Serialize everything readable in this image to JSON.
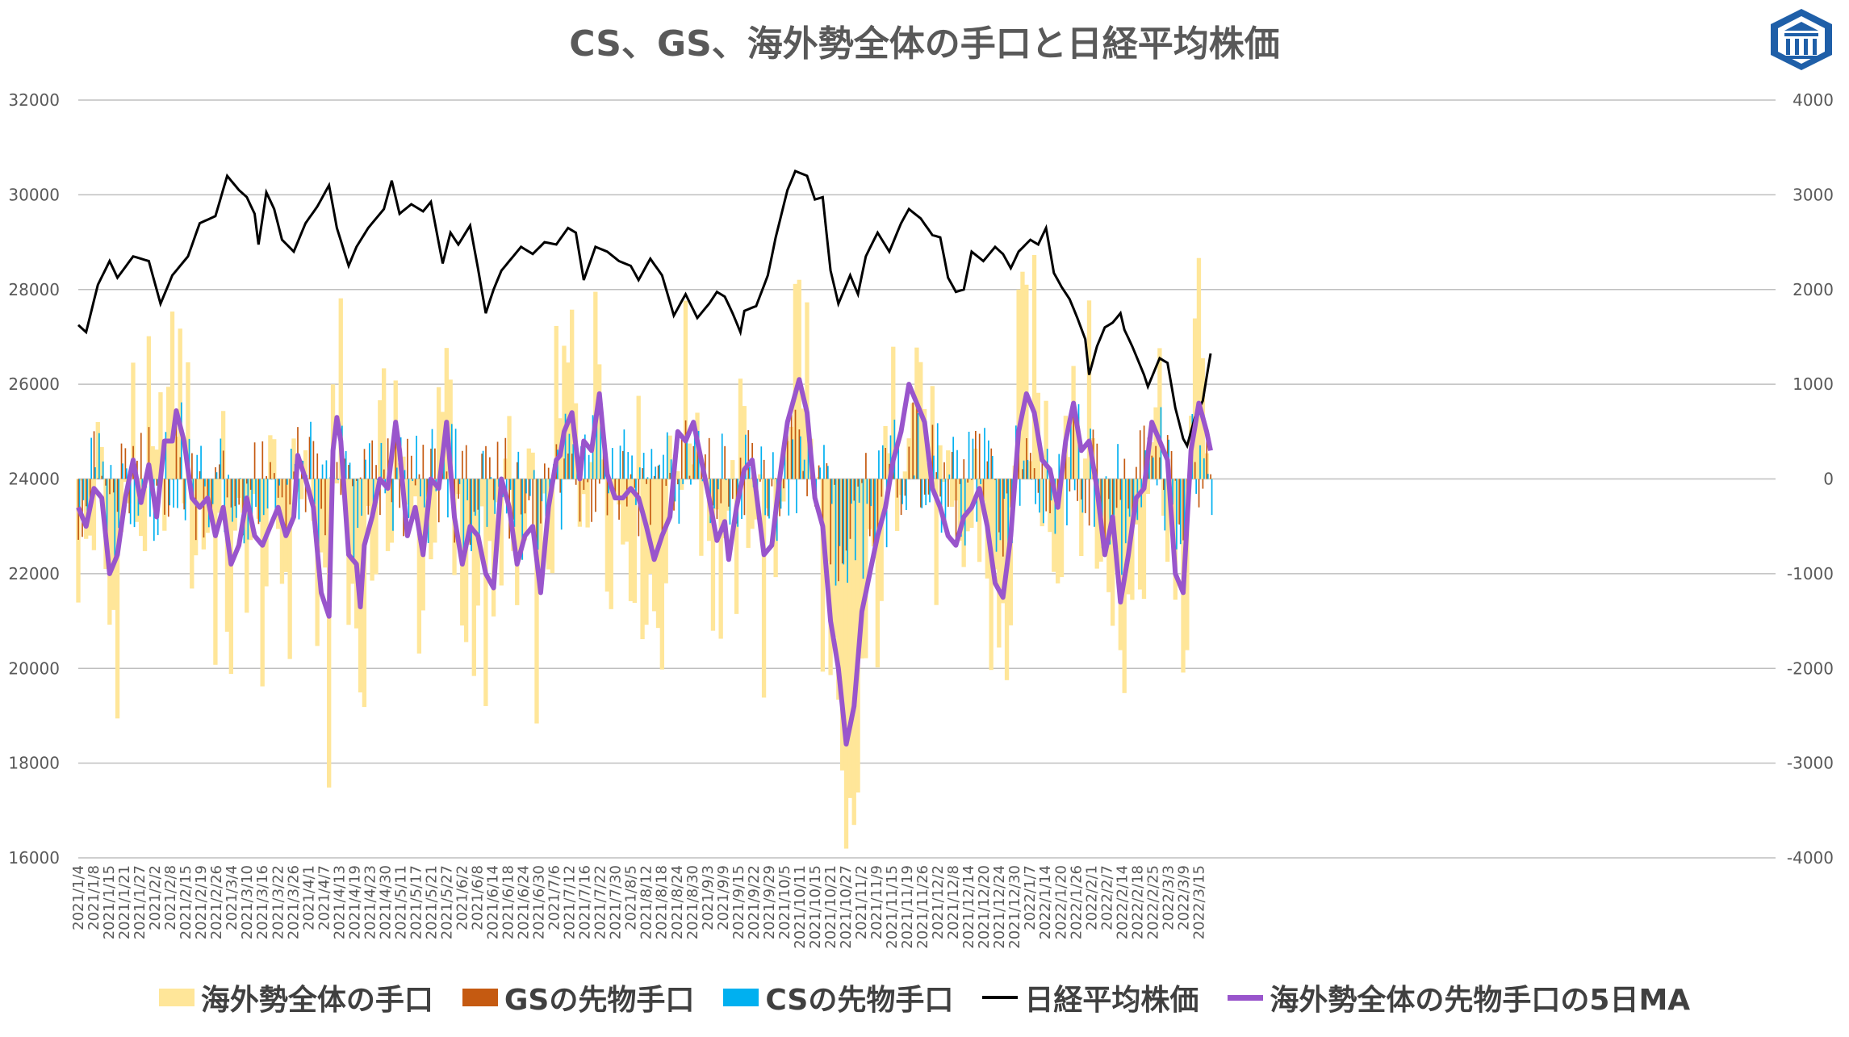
{
  "chart_data": {
    "type": "bar",
    "title": "CS、GS、海外勢全体の手口と日経平均株価",
    "y_left": {
      "ylim": [
        16000,
        32000
      ],
      "ticks": [
        "16000",
        "18000",
        "20000",
        "22000",
        "24000",
        "26000",
        "28000",
        "30000",
        "32000"
      ]
    },
    "y_right": {
      "ylim": [
        -4000,
        4000
      ],
      "ticks": [
        "-4000",
        "-3000",
        "-2000",
        "-1000",
        "0",
        "1000",
        "2000",
        "3000",
        "4000"
      ]
    },
    "x_tick_labels": [
      "2021/1/4",
      "2021/1/8",
      "2021/1/15",
      "2021/1/21",
      "2021/1/27",
      "2021/2/2",
      "2021/2/8",
      "2021/2/15",
      "2021/2/19",
      "2021/2/26",
      "2021/3/4",
      "2021/3/10",
      "2021/3/16",
      "2021/3/22",
      "2021/3/26",
      "2021/4/1",
      "2021/4/7",
      "2021/4/13",
      "2021/4/19",
      "2021/4/23",
      "2021/4/30",
      "2021/5/11",
      "2021/5/17",
      "2021/5/21",
      "2021/5/27",
      "2021/6/2",
      "2021/6/8",
      "2021/6/14",
      "2021/6/18",
      "2021/6/24",
      "2021/6/30",
      "2021/7/6",
      "2021/7/12",
      "2021/7/16",
      "2021/7/22",
      "2021/7/30",
      "2021/8/5",
      "2021/8/12",
      "2021/8/18",
      "2021/8/24",
      "2021/8/30",
      "2021/9/3",
      "2021/9/9",
      "2021/9/15",
      "2021/9/22",
      "2021/9/29",
      "2021/10/5",
      "2021/10/11",
      "2021/10/15",
      "2021/10/21",
      "2021/10/27",
      "2021/11/2",
      "2021/11/9",
      "2021/11/15",
      "2021/11/19",
      "2021/11/26",
      "2021/12/2",
      "2021/12/8",
      "2021/12/14",
      "2021/12/20",
      "2021/12/24",
      "2021/12/30",
      "2022/1/7",
      "2022/1/14",
      "2022/1/20",
      "2022/1/26",
      "2022/2/1",
      "2022/2/7",
      "2022/2/14",
      "2022/2/18",
      "2022/2/25",
      "2022/3/3",
      "2022/3/9",
      "2022/3/15"
    ],
    "nikkei_anchors": [
      [
        0,
        27250
      ],
      [
        2,
        27100
      ],
      [
        5,
        28100
      ],
      [
        8,
        28600
      ],
      [
        10,
        28250
      ],
      [
        14,
        28700
      ],
      [
        18,
        28600
      ],
      [
        21,
        27700
      ],
      [
        24,
        28300
      ],
      [
        28,
        28700
      ],
      [
        31,
        29400
      ],
      [
        35,
        29550
      ],
      [
        38,
        30400
      ],
      [
        41,
        30100
      ],
      [
        43,
        29950
      ],
      [
        45,
        29600
      ],
      [
        46,
        28950
      ],
      [
        48,
        30050
      ],
      [
        50,
        29700
      ],
      [
        52,
        29050
      ],
      [
        55,
        28800
      ],
      [
        58,
        29400
      ],
      [
        61,
        29750
      ],
      [
        64,
        30200
      ],
      [
        66,
        29300
      ],
      [
        69,
        28500
      ],
      [
        71,
        28900
      ],
      [
        74,
        29300
      ],
      [
        78,
        29700
      ],
      [
        80,
        30300
      ],
      [
        82,
        29600
      ],
      [
        85,
        29800
      ],
      [
        88,
        29650
      ],
      [
        90,
        29850
      ],
      [
        93,
        28550
      ],
      [
        95,
        29200
      ],
      [
        97,
        28950
      ],
      [
        100,
        29350
      ],
      [
        102,
        28450
      ],
      [
        104,
        27500
      ],
      [
        106,
        28000
      ],
      [
        108,
        28400
      ],
      [
        110,
        28600
      ],
      [
        113,
        28900
      ],
      [
        116,
        28750
      ],
      [
        119,
        29000
      ],
      [
        122,
        28950
      ],
      [
        125,
        29300
      ],
      [
        127,
        29200
      ],
      [
        129,
        28200
      ],
      [
        132,
        28900
      ],
      [
        135,
        28800
      ],
      [
        138,
        28600
      ],
      [
        141,
        28500
      ],
      [
        143,
        28200
      ],
      [
        146,
        28650
      ],
      [
        149,
        28300
      ],
      [
        152,
        27450
      ],
      [
        155,
        27900
      ],
      [
        158,
        27400
      ],
      [
        161,
        27700
      ],
      [
        163,
        27950
      ],
      [
        165,
        27850
      ],
      [
        167,
        27500
      ],
      [
        169,
        27100
      ],
      [
        170,
        27550
      ],
      [
        173,
        27650
      ],
      [
        176,
        28300
      ],
      [
        178,
        29100
      ],
      [
        181,
        30100
      ],
      [
        183,
        30500
      ],
      [
        186,
        30400
      ],
      [
        188,
        29900
      ],
      [
        190,
        29950
      ],
      [
        192,
        28400
      ],
      [
        194,
        27700
      ],
      [
        197,
        28300
      ],
      [
        199,
        27900
      ],
      [
        201,
        28700
      ],
      [
        204,
        29200
      ],
      [
        207,
        28800
      ],
      [
        210,
        29400
      ],
      [
        212,
        29700
      ],
      [
        215,
        29500
      ],
      [
        218,
        29150
      ],
      [
        220,
        29100
      ],
      [
        222,
        28250
      ],
      [
        224,
        27950
      ],
      [
        226,
        28000
      ],
      [
        228,
        28800
      ],
      [
        231,
        28600
      ],
      [
        234,
        28900
      ],
      [
        236,
        28750
      ],
      [
        238,
        28450
      ],
      [
        240,
        28800
      ],
      [
        243,
        29050
      ],
      [
        245,
        28950
      ],
      [
        247,
        29300
      ],
      [
        249,
        28350
      ],
      [
        251,
        28050
      ],
      [
        253,
        27800
      ],
      [
        255,
        27400
      ],
      [
        257,
        26950
      ],
      [
        258,
        26200
      ],
      [
        260,
        26800
      ],
      [
        262,
        27200
      ],
      [
        264,
        27300
      ],
      [
        266,
        27500
      ],
      [
        267,
        27150
      ],
      [
        269,
        26800
      ],
      [
        272,
        26200
      ],
      [
        273,
        25950
      ],
      [
        276,
        26550
      ],
      [
        278,
        26450
      ],
      [
        280,
        25500
      ],
      [
        282,
        24850
      ],
      [
        283,
        24700
      ],
      [
        285,
        25300
      ],
      [
        287,
        25650
      ],
      [
        289,
        26650
      ]
    ],
    "ma5_anchors": [
      [
        0,
        -300
      ],
      [
        2,
        -500
      ],
      [
        4,
        -100
      ],
      [
        6,
        -200
      ],
      [
        8,
        -1000
      ],
      [
        10,
        -800
      ],
      [
        12,
        -200
      ],
      [
        14,
        200
      ],
      [
        16,
        -250
      ],
      [
        18,
        150
      ],
      [
        20,
        -400
      ],
      [
        22,
        400
      ],
      [
        24,
        400
      ],
      [
        25,
        720
      ],
      [
        27,
        400
      ],
      [
        29,
        -200
      ],
      [
        31,
        -300
      ],
      [
        33,
        -200
      ],
      [
        35,
        -600
      ],
      [
        37,
        -300
      ],
      [
        39,
        -900
      ],
      [
        41,
        -700
      ],
      [
        43,
        -200
      ],
      [
        45,
        -600
      ],
      [
        47,
        -700
      ],
      [
        49,
        -500
      ],
      [
        51,
        -300
      ],
      [
        53,
        -600
      ],
      [
        55,
        -400
      ],
      [
        56,
        250
      ],
      [
        58,
        0
      ],
      [
        60,
        -300
      ],
      [
        62,
        -1200
      ],
      [
        64,
        -1450
      ],
      [
        65,
        300
      ],
      [
        66,
        650
      ],
      [
        67,
        400
      ],
      [
        69,
        -800
      ],
      [
        71,
        -900
      ],
      [
        72,
        -1350
      ],
      [
        73,
        -700
      ],
      [
        75,
        -400
      ],
      [
        77,
        0
      ],
      [
        79,
        -100
      ],
      [
        81,
        600
      ],
      [
        82,
        300
      ],
      [
        84,
        -600
      ],
      [
        86,
        -300
      ],
      [
        88,
        -800
      ],
      [
        90,
        0
      ],
      [
        92,
        -100
      ],
      [
        94,
        600
      ],
      [
        96,
        -400
      ],
      [
        98,
        -900
      ],
      [
        100,
        -500
      ],
      [
        102,
        -600
      ],
      [
        104,
        -1000
      ],
      [
        106,
        -1150
      ],
      [
        108,
        0
      ],
      [
        110,
        -300
      ],
      [
        112,
        -900
      ],
      [
        114,
        -600
      ],
      [
        116,
        -500
      ],
      [
        118,
        -1200
      ],
      [
        120,
        -300
      ],
      [
        122,
        200
      ],
      [
        123,
        250
      ],
      [
        124,
        500
      ],
      [
        126,
        700
      ],
      [
        128,
        0
      ],
      [
        129,
        400
      ],
      [
        131,
        300
      ],
      [
        133,
        900
      ],
      [
        135,
        50
      ],
      [
        137,
        -200
      ],
      [
        139,
        -200
      ],
      [
        141,
        -100
      ],
      [
        143,
        -200
      ],
      [
        145,
        -500
      ],
      [
        147,
        -850
      ],
      [
        149,
        -600
      ],
      [
        151,
        -400
      ],
      [
        153,
        500
      ],
      [
        155,
        400
      ],
      [
        157,
        600
      ],
      [
        159,
        200
      ],
      [
        161,
        -200
      ],
      [
        163,
        -650
      ],
      [
        165,
        -450
      ],
      [
        166,
        -850
      ],
      [
        168,
        -300
      ],
      [
        170,
        100
      ],
      [
        172,
        200
      ],
      [
        175,
        -800
      ],
      [
        177,
        -700
      ],
      [
        179,
        0
      ],
      [
        181,
        600
      ],
      [
        184,
        1050
      ],
      [
        186,
        700
      ],
      [
        188,
        -200
      ],
      [
        190,
        -500
      ],
      [
        192,
        -1500
      ],
      [
        194,
        -2000
      ],
      [
        196,
        -2800
      ],
      [
        198,
        -2400
      ],
      [
        200,
        -1400
      ],
      [
        202,
        -1000
      ],
      [
        204,
        -600
      ],
      [
        206,
        -300
      ],
      [
        208,
        200
      ],
      [
        210,
        500
      ],
      [
        212,
        1000
      ],
      [
        214,
        800
      ],
      [
        216,
        600
      ],
      [
        218,
        -100
      ],
      [
        220,
        -300
      ],
      [
        222,
        -600
      ],
      [
        224,
        -700
      ],
      [
        226,
        -400
      ],
      [
        228,
        -300
      ],
      [
        230,
        -100
      ],
      [
        232,
        -500
      ],
      [
        234,
        -1100
      ],
      [
        236,
        -1250
      ],
      [
        238,
        -600
      ],
      [
        240,
        500
      ],
      [
        242,
        900
      ],
      [
        244,
        700
      ],
      [
        246,
        200
      ],
      [
        248,
        100
      ],
      [
        250,
        -300
      ],
      [
        252,
        400
      ],
      [
        254,
        800
      ],
      [
        256,
        300
      ],
      [
        258,
        400
      ],
      [
        260,
        -100
      ],
      [
        262,
        -800
      ],
      [
        264,
        -400
      ],
      [
        266,
        -1300
      ],
      [
        268,
        -800
      ],
      [
        270,
        -200
      ],
      [
        272,
        -100
      ],
      [
        274,
        600
      ],
      [
        276,
        400
      ],
      [
        278,
        200
      ],
      [
        280,
        -1000
      ],
      [
        282,
        -1200
      ],
      [
        284,
        300
      ],
      [
        286,
        800
      ],
      [
        288,
        500
      ],
      [
        289,
        300
      ]
    ],
    "series": [
      {
        "name": "海外勢全体の手口",
        "color": "#FFE699",
        "axis": "right"
      },
      {
        "name": "GSの先物手口",
        "color": "#C55A11",
        "axis": "right"
      },
      {
        "name": "CSの先物手口",
        "color": "#00B0F0",
        "axis": "right"
      },
      {
        "name": "日経平均株価",
        "color": "#000000",
        "axis": "left"
      },
      {
        "name": "海外勢全体の先物手口の5日MA",
        "color": "#9955CC",
        "axis": "right"
      }
    ],
    "grid": true,
    "legend_position": "bottom"
  }
}
